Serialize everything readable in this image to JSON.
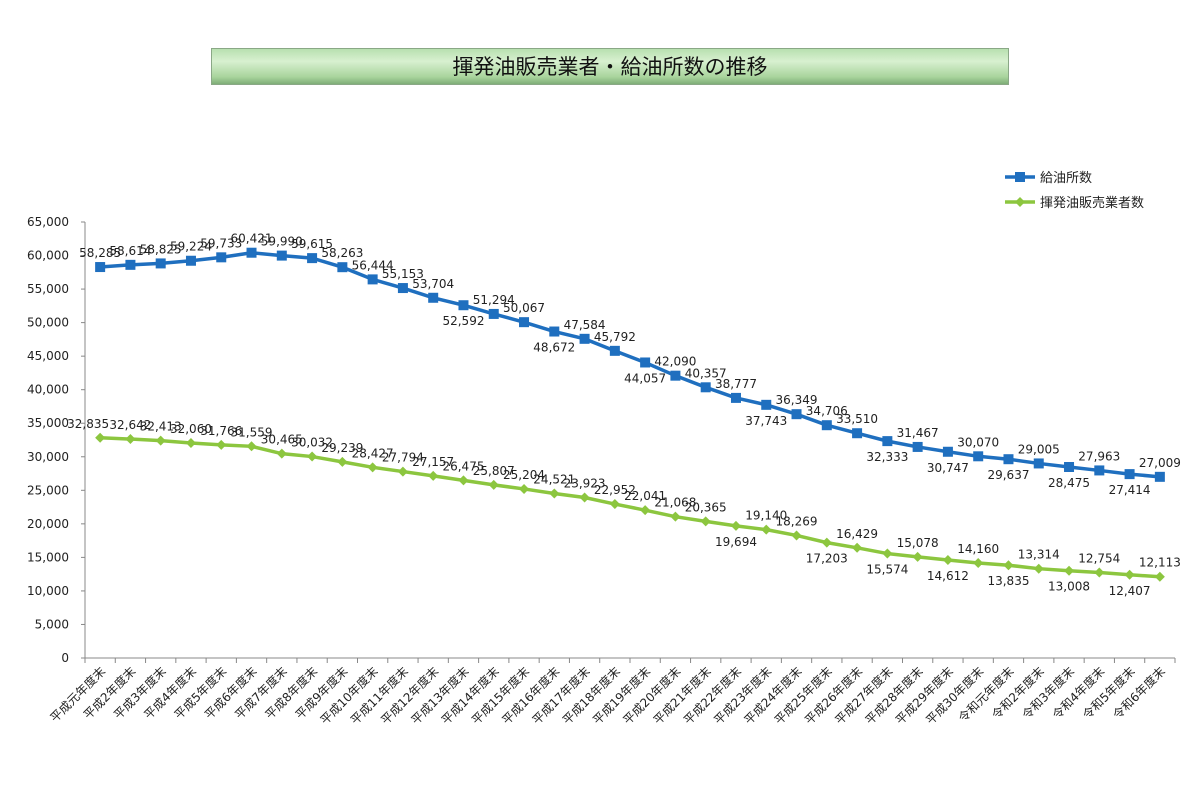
{
  "title": "揮発油販売業者・給油所数の推移",
  "chart_data": {
    "type": "line",
    "title": "揮発油販売業者・給油所数の推移",
    "xlabel": "",
    "ylabel": "",
    "ylim": [
      0,
      65000
    ],
    "yticks": [
      "0",
      "5,000",
      "10,000",
      "15,000",
      "20,000",
      "25,000",
      "30,000",
      "35,000",
      "40,000",
      "45,000",
      "50,000",
      "55,000",
      "60,000",
      "65,000"
    ],
    "grid": false,
    "legend_position": "top-right",
    "categories": [
      "平成元年度末",
      "平成2年度末",
      "平成3年度末",
      "平成4年度末",
      "平成5年度末",
      "平成6年度末",
      "平成7年度末",
      "平成8年度末",
      "平成9年度末",
      "平成10年度末",
      "平成11年度末",
      "平成12年度末",
      "平成13年度末",
      "平成14年度末",
      "平成15年度末",
      "平成16年度末",
      "平成17年度末",
      "平成18年度末",
      "平成19年度末",
      "平成20年度末",
      "平成21年度末",
      "平成22年度末",
      "平成23年度末",
      "平成24年度末",
      "平成25年度末",
      "平成26年度末",
      "平成27年度末",
      "平成28年度末",
      "平成29年度末",
      "平成30年度末",
      "令和元年度末",
      "令和2年度末",
      "令和3年度末",
      "令和4年度末",
      "令和5年度末",
      "令和6年度末"
    ],
    "series": [
      {
        "name": "給油所数",
        "color": "#1f6fbf",
        "marker": "square",
        "values": [
          58285,
          58614,
          58825,
          59224,
          59733,
          60421,
          59990,
          59615,
          58263,
          56444,
          55153,
          53704,
          52592,
          51294,
          50067,
          48672,
          47584,
          45792,
          44057,
          42090,
          40357,
          38777,
          37743,
          36349,
          34706,
          33510,
          32333,
          31467,
          30747,
          30070,
          29637,
          29005,
          28475,
          27963,
          27414,
          27009
        ]
      },
      {
        "name": "揮発油販売業者数",
        "color": "#8cc63f",
        "marker": "diamond",
        "values": [
          32835,
          32642,
          32413,
          32060,
          31766,
          31559,
          30465,
          30032,
          29239,
          28427,
          27794,
          27157,
          26475,
          25807,
          25204,
          24521,
          23923,
          22952,
          22041,
          21068,
          20365,
          19694,
          19140,
          18269,
          17203,
          16429,
          15574,
          15078,
          14612,
          14160,
          13835,
          13314,
          13008,
          12754,
          12407,
          12113
        ]
      }
    ]
  }
}
